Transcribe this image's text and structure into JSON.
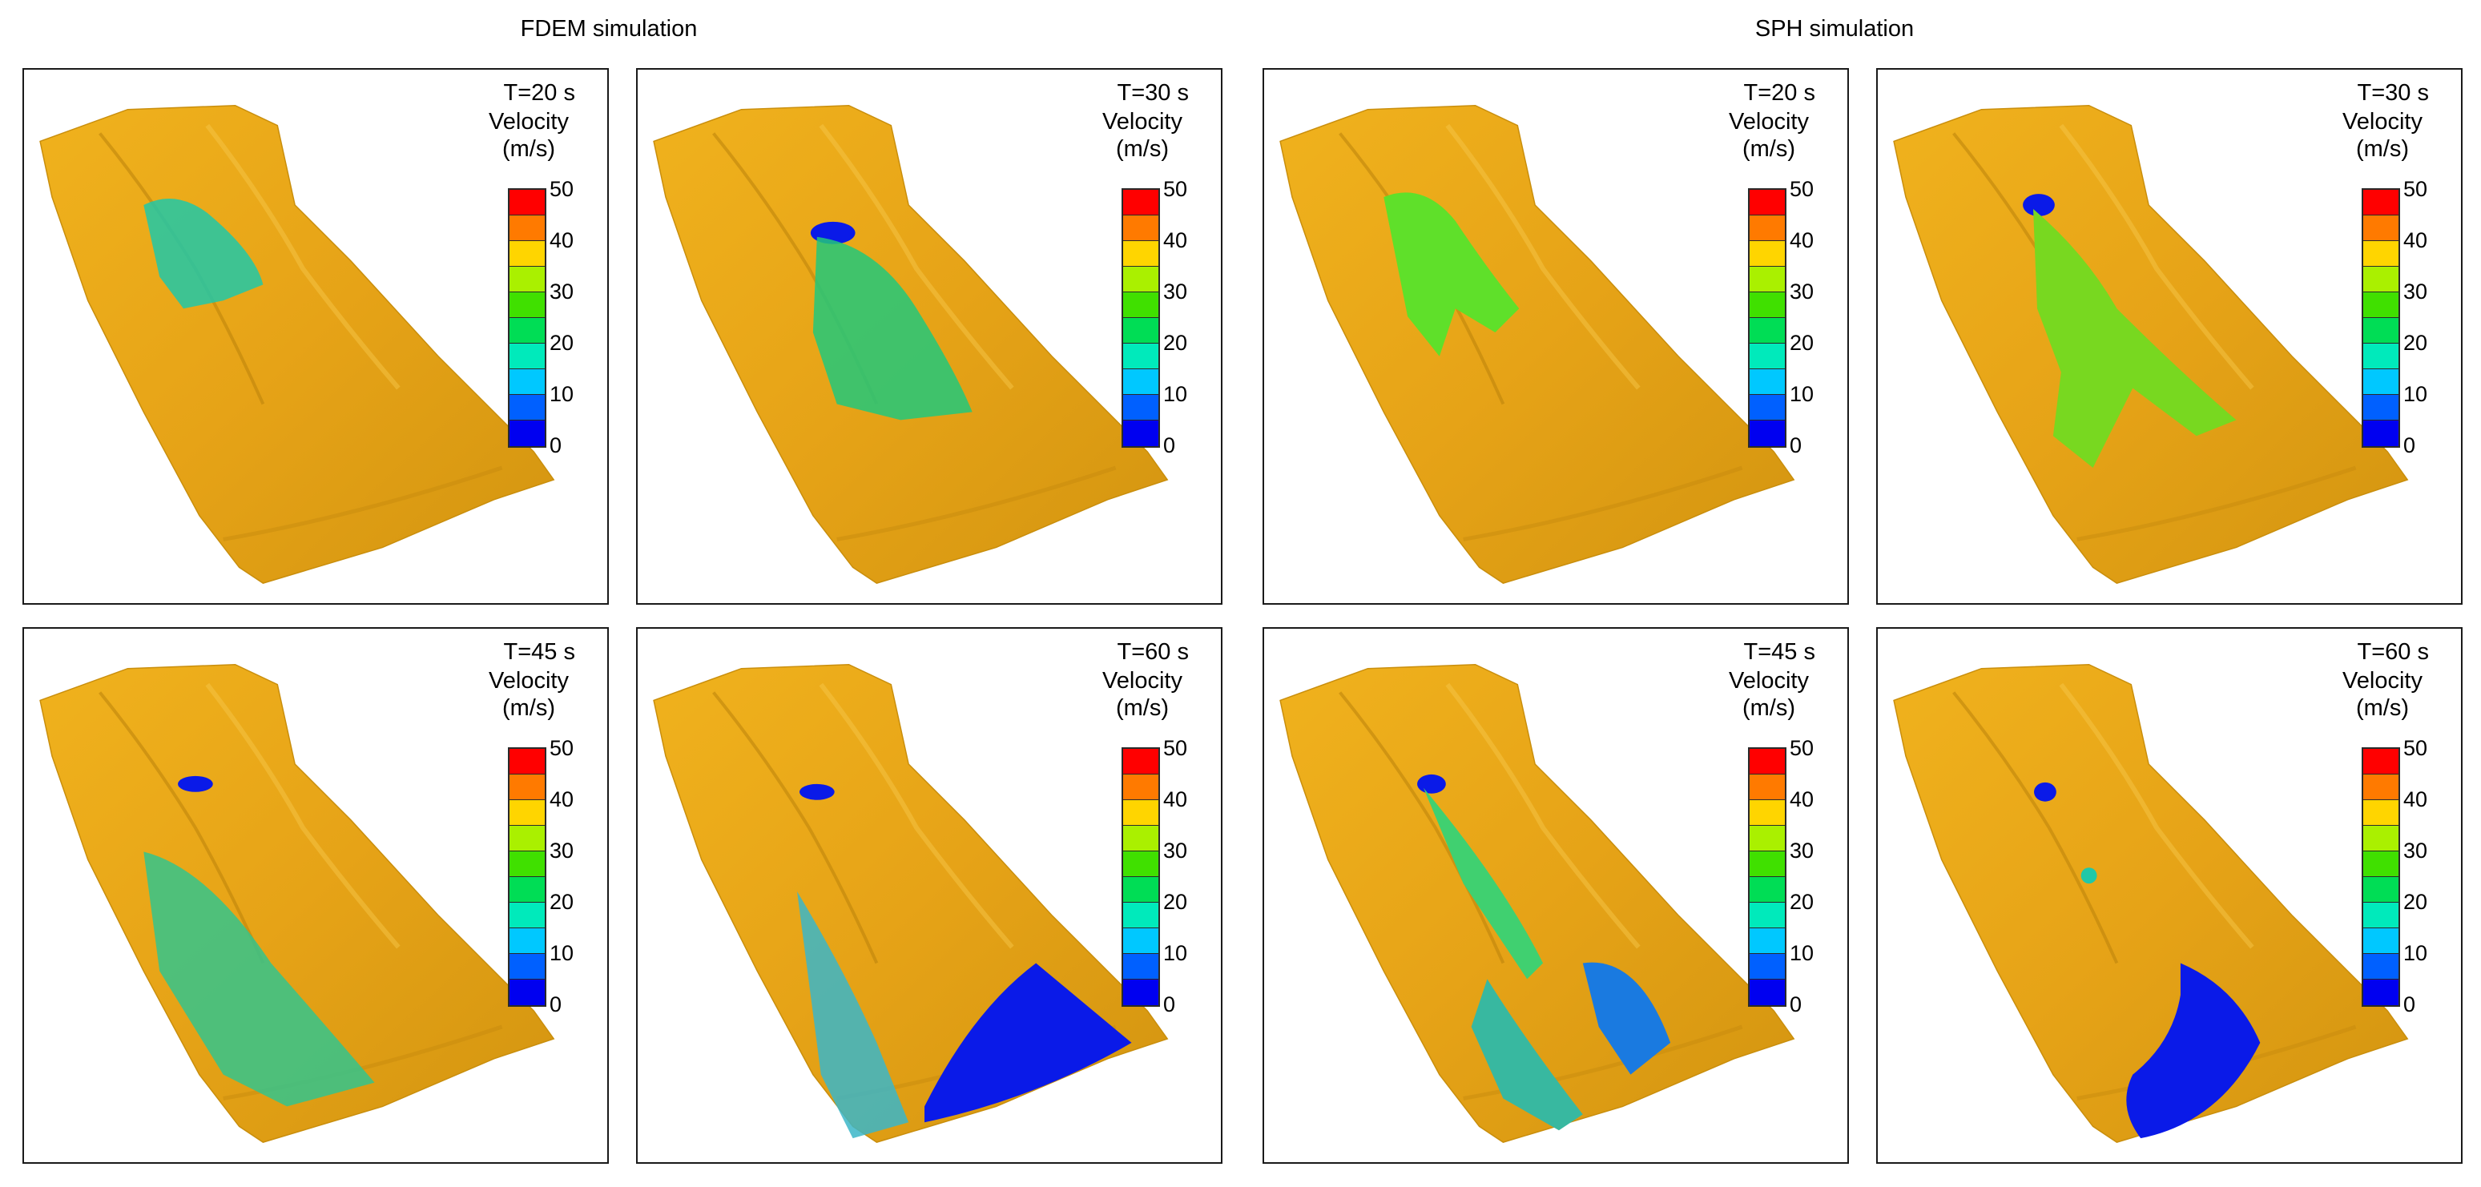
{
  "titles": {
    "fdem": "FDEM simulation",
    "sph": "SPH simulation"
  },
  "velocity_label": "Velocity",
  "velocity_unit": "(m/s)",
  "colorbar": {
    "ticks": [
      "50",
      "40",
      "30",
      "20",
      "10",
      "0"
    ],
    "colors": [
      "#ff0000",
      "#ff7a00",
      "#ffd500",
      "#aaf000",
      "#40e000",
      "#00dd55",
      "#00eabb",
      "#00c8ff",
      "#0060ff",
      "#0000f0"
    ]
  },
  "terrain_color": "#e6a317",
  "panels": [
    {
      "group": "fdem",
      "time": "T=20 s"
    },
    {
      "group": "fdem",
      "time": "T=30 s"
    },
    {
      "group": "sph",
      "time": "T=20 s"
    },
    {
      "group": "sph",
      "time": "T=30 s"
    },
    {
      "group": "fdem",
      "time": "T=45 s"
    },
    {
      "group": "fdem",
      "time": "T=60 s"
    },
    {
      "group": "sph",
      "time": "T=45 s"
    },
    {
      "group": "sph",
      "time": "T=60 s"
    }
  ]
}
